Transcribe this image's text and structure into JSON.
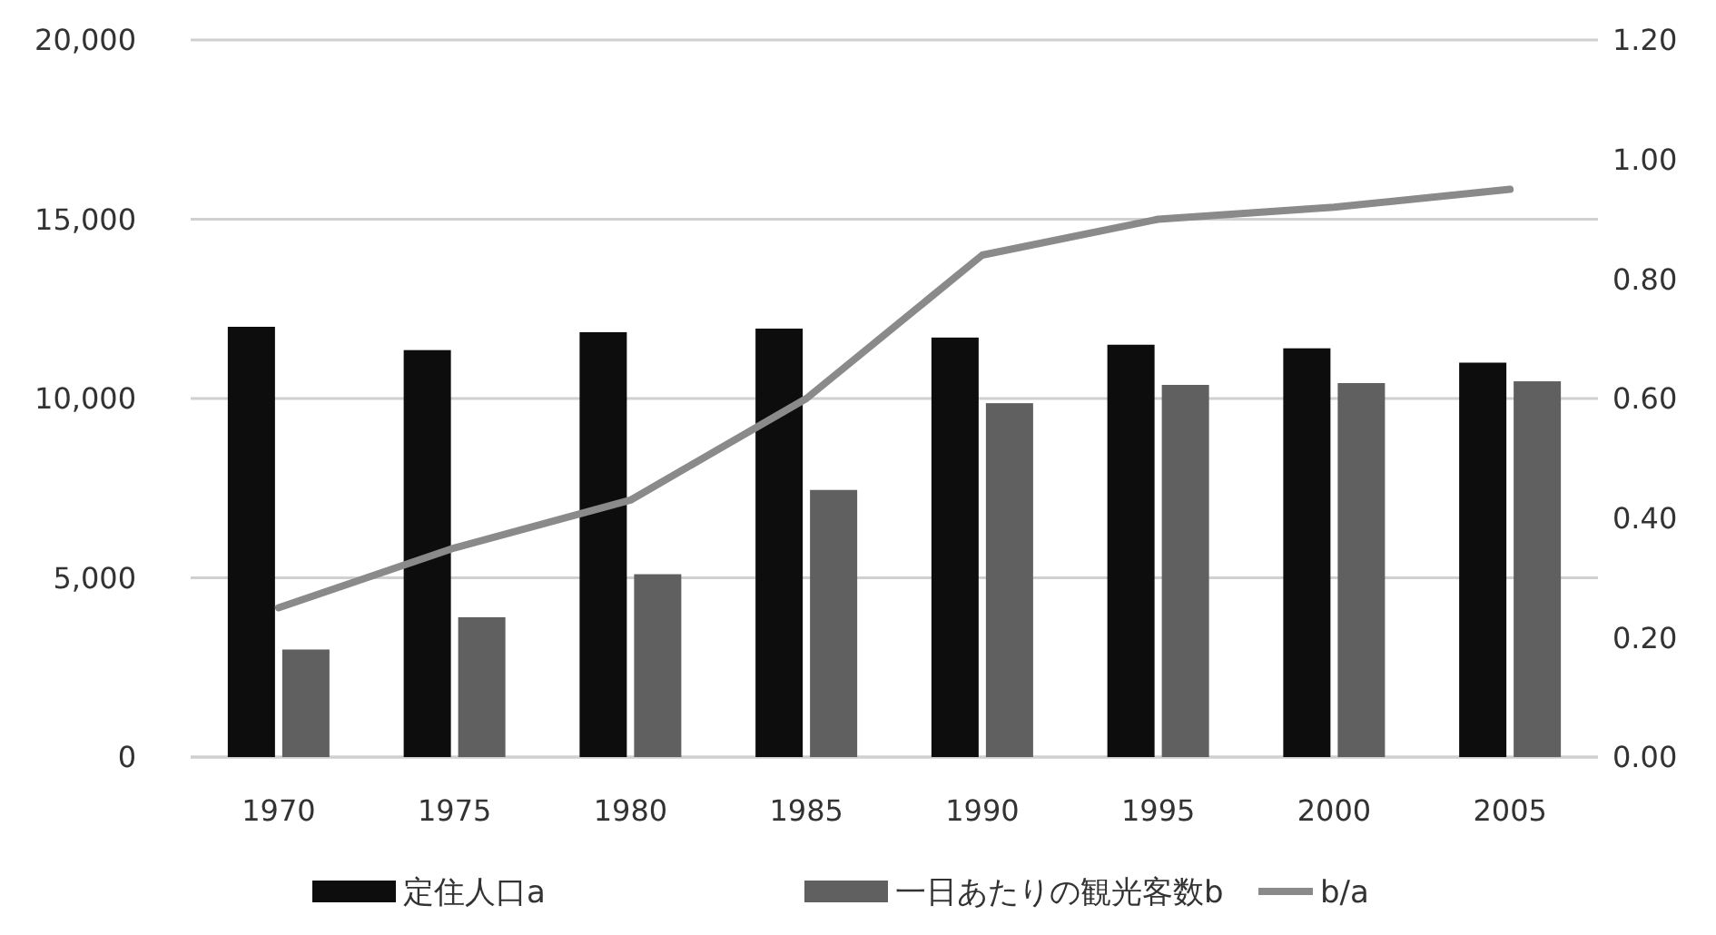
{
  "chart_data": {
    "type": "bar",
    "categories": [
      "1970",
      "1975",
      "1980",
      "1985",
      "1990",
      "1995",
      "2000",
      "2005"
    ],
    "series": [
      {
        "name": "定住人口a",
        "color": "#0d0d0d",
        "values": [
          12000,
          11350,
          11850,
          11950,
          11700,
          11500,
          11400,
          11000
        ]
      },
      {
        "name": "一日あたりの観光客数b",
        "color": "#606060",
        "values": [
          3000,
          3900,
          5100,
          7450,
          9870,
          10380,
          10430,
          10480
        ]
      },
      {
        "name": "b/a",
        "type": "line",
        "axis": "y2",
        "color": "#8a8a8a",
        "values": [
          0.25,
          0.35,
          0.43,
          0.6,
          0.84,
          0.9,
          0.92,
          0.95
        ]
      }
    ],
    "ylim": [
      0,
      20000
    ],
    "yticks": [
      {
        "value": 0,
        "label": "0"
      },
      {
        "value": 5000,
        "label": "5,000"
      },
      {
        "value": 10000,
        "label": "10,000"
      },
      {
        "value": 15000,
        "label": "15,000"
      },
      {
        "value": 20000,
        "label": "20,000"
      }
    ],
    "y2lim": [
      0,
      1.2
    ],
    "y2ticks": [
      {
        "value": 0,
        "label": "0.00"
      },
      {
        "value": 0.2,
        "label": "0.20"
      },
      {
        "value": 0.4,
        "label": "0.40"
      },
      {
        "value": 0.6,
        "label": "0.60"
      },
      {
        "value": 0.8,
        "label": "0.80"
      },
      {
        "value": 1,
        "label": "1.00"
      },
      {
        "value": 1.2,
        "label": "1.20"
      }
    ],
    "grid": "y",
    "legend": "bottom",
    "marker": "none",
    "line_style": "solid"
  }
}
